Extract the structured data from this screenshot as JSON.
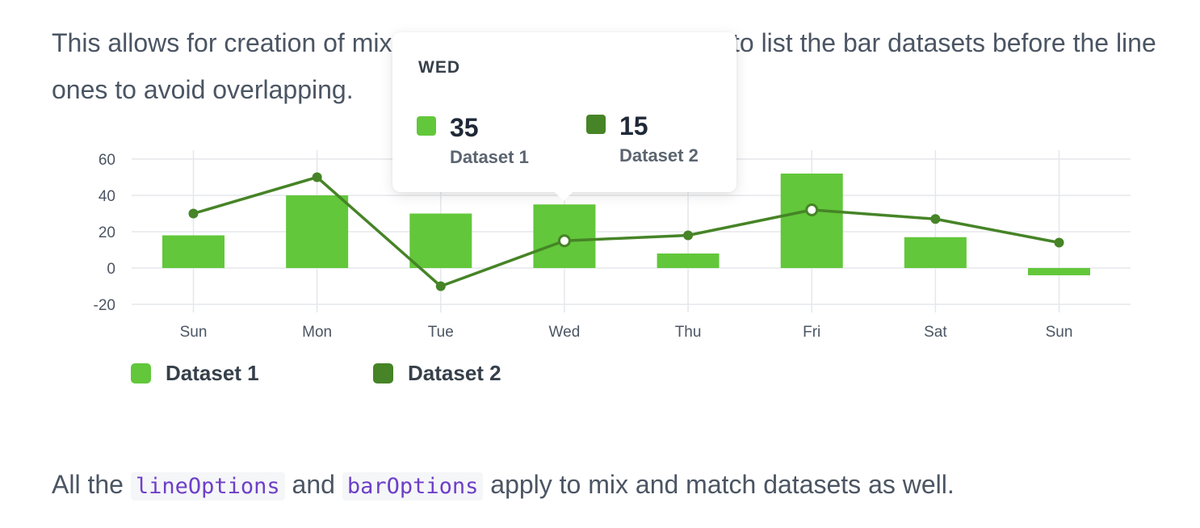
{
  "text": {
    "top_paragraph": "This allows for creation of mixed charts. It is recommended to list the bar datasets before the line ones to avoid overlapping.",
    "bottom_prefix": "All the ",
    "bottom_code_1": "lineOptions",
    "bottom_mid": " and ",
    "bottom_code_2": "barOptions",
    "bottom_suffix": " apply to mix and match datasets as well."
  },
  "colors": {
    "dataset_1": "#62c73a",
    "dataset_2": "#468427",
    "grid": "#e5e7eb",
    "axis_text": "#4b5563"
  },
  "chart_data": {
    "type": "bar",
    "title": "",
    "xlabel": "",
    "ylabel": "",
    "categories": [
      "Sun",
      "Mon",
      "Tue",
      "Wed",
      "Thu",
      "Fri",
      "Sat",
      "Sun"
    ],
    "ylim": [
      -20,
      60
    ],
    "yticks": [
      60,
      40,
      20,
      0,
      -20
    ],
    "grid": true,
    "legend_position": "bottom-left",
    "series": [
      {
        "name": "Dataset 1",
        "type": "bar",
        "color": "#62c73a",
        "values": [
          18,
          40,
          30,
          35,
          8,
          52,
          17,
          -4
        ]
      },
      {
        "name": "Dataset 2",
        "type": "line",
        "color": "#468427",
        "values": [
          30,
          50,
          -10,
          15,
          18,
          32,
          27,
          14
        ]
      }
    ],
    "tooltip": {
      "title": "WED",
      "category_index": 3,
      "items": [
        {
          "name": "Dataset 1",
          "value": "35",
          "color": "#62c73a"
        },
        {
          "name": "Dataset 2",
          "value": "15",
          "color": "#468427"
        }
      ]
    }
  }
}
